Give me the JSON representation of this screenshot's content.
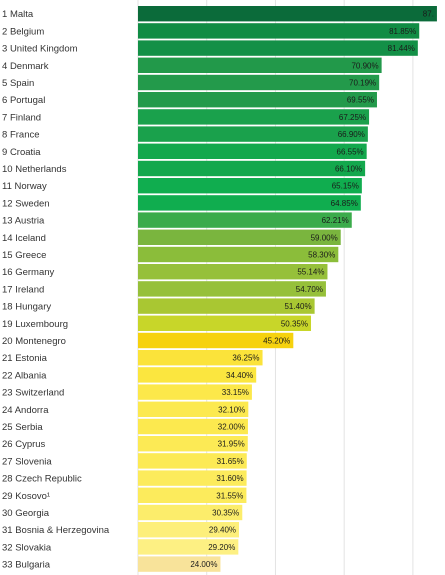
{
  "chart_data": {
    "type": "bar",
    "orientation": "horizontal",
    "grid": true,
    "xlim": [
      0,
      100
    ],
    "rows": [
      {
        "rank": "1",
        "country": "Malta",
        "value": 87.0,
        "label": "87.",
        "color": "#0b6b3a"
      },
      {
        "rank": "2",
        "country": "Belgium",
        "value": 81.85,
        "label": "81.85%",
        "color": "#108c44"
      },
      {
        "rank": "3",
        "country": "United Kingdom",
        "value": 81.44,
        "label": "81.44%",
        "color": "#139047"
      },
      {
        "rank": "4",
        "country": "Denmark",
        "value": 70.9,
        "label": "70.90%",
        "color": "#22994a"
      },
      {
        "rank": "5",
        "country": "Spain",
        "value": 70.19,
        "label": "70.19%",
        "color": "#239a4b"
      },
      {
        "rank": "6",
        "country": "Portugal",
        "value": 69.55,
        "label": "69.55%",
        "color": "#239a4b"
      },
      {
        "rank": "7",
        "country": "Finland",
        "value": 67.25,
        "label": "67.25%",
        "color": "#1aa14c"
      },
      {
        "rank": "8",
        "country": "France",
        "value": 66.9,
        "label": "66.90%",
        "color": "#1aa14c"
      },
      {
        "rank": "9",
        "country": "Croatia",
        "value": 66.55,
        "label": "66.55%",
        "color": "#13a84d"
      },
      {
        "rank": "10",
        "country": "Netherlands",
        "value": 66.1,
        "label": "66.10%",
        "color": "#13a84d"
      },
      {
        "rank": "11",
        "country": "Norway",
        "value": 65.15,
        "label": "65.15%",
        "color": "#10ad4f"
      },
      {
        "rank": "12",
        "country": "Sweden",
        "value": 64.85,
        "label": "64.85%",
        "color": "#10ad4f"
      },
      {
        "rank": "13",
        "country": "Austria",
        "value": 62.21,
        "label": "62.21%",
        "color": "#3bab4b"
      },
      {
        "rank": "14",
        "country": "Iceland",
        "value": 59.0,
        "label": "59.00%",
        "color": "#7ab53e"
      },
      {
        "rank": "15",
        "country": "Greece",
        "value": 58.3,
        "label": "58.30%",
        "color": "#8bbd3a"
      },
      {
        "rank": "16",
        "country": "Germany",
        "value": 55.14,
        "label": "55.14%",
        "color": "#96c03a"
      },
      {
        "rank": "17",
        "country": "Ireland",
        "value": 54.7,
        "label": "54.70%",
        "color": "#96c03a"
      },
      {
        "rank": "18",
        "country": "Hungary",
        "value": 51.4,
        "label": "51.40%",
        "color": "#a9c732"
      },
      {
        "rank": "19",
        "country": "Luxembourg",
        "value": 50.35,
        "label": "50.35%",
        "color": "#c8d629"
      },
      {
        "rank": "20",
        "country": "Montenegro",
        "value": 45.2,
        "label": "45.20%",
        "color": "#f6d20e"
      },
      {
        "rank": "21",
        "country": "Estonia",
        "value": 36.25,
        "label": "36.25%",
        "color": "#fbe33a"
      },
      {
        "rank": "22",
        "country": "Albania",
        "value": 34.4,
        "label": "34.40%",
        "color": "#fbe63f"
      },
      {
        "rank": "23",
        "country": "Switzerland",
        "value": 33.15,
        "label": "33.15%",
        "color": "#fce84a"
      },
      {
        "rank": "24",
        "country": "Andorra",
        "value": 32.1,
        "label": "32.10%",
        "color": "#fce94f"
      },
      {
        "rank": "25",
        "country": "Serbia",
        "value": 32.0,
        "label": "32.00%",
        "color": "#fce94f"
      },
      {
        "rank": "26",
        "country": "Cyprus",
        "value": 31.95,
        "label": "31.95%",
        "color": "#fcea55"
      },
      {
        "rank": "27",
        "country": "Slovenia",
        "value": 31.65,
        "label": "31.65%",
        "color": "#fcea55"
      },
      {
        "rank": "28",
        "country": "Czech Republic",
        "value": 31.6,
        "label": "31.60%",
        "color": "#fceb5c"
      },
      {
        "rank": "29",
        "country": "Kosovo¹",
        "value": 31.55,
        "label": "31.55%",
        "color": "#fceb5c"
      },
      {
        "rank": "30",
        "country": "Georgia",
        "value": 30.35,
        "label": "30.35%",
        "color": "#fced6b"
      },
      {
        "rank": "31",
        "country": "Bosnia & Herzegovina",
        "value": 29.4,
        "label": "29.40%",
        "color": "#fdef7a"
      },
      {
        "rank": "32",
        "country": "Slovakia",
        "value": 29.2,
        "label": "29.20%",
        "color": "#fdf083"
      },
      {
        "rank": "33",
        "country": "Bulgaria",
        "value": 24.0,
        "label": "24.00%",
        "color": "#f8e39a"
      }
    ]
  }
}
